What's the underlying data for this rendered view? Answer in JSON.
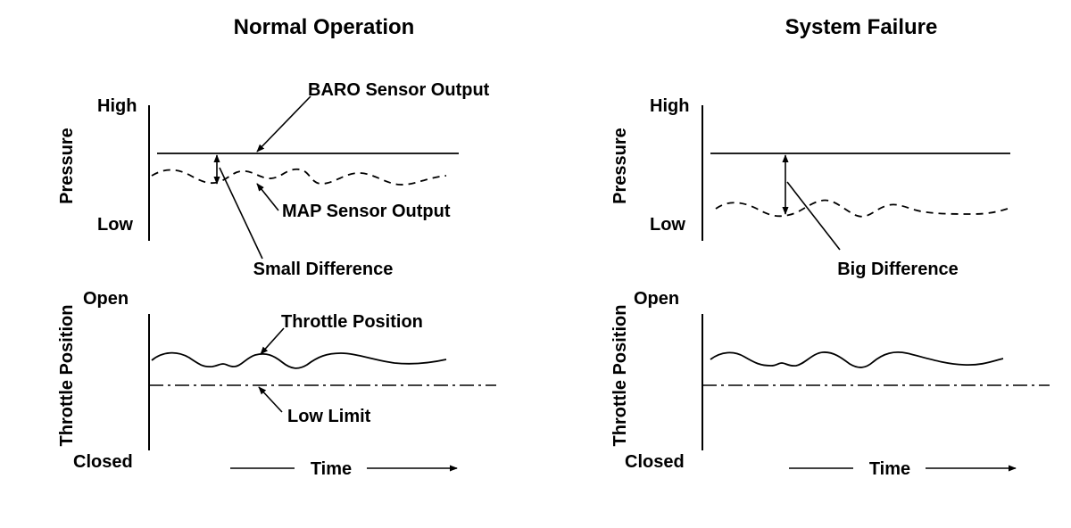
{
  "panels": {
    "normal": {
      "title": "Normal Operation",
      "pressure_axis": "Pressure",
      "pressure_high": "High",
      "pressure_low": "Low",
      "baro_label": "BARO Sensor Output",
      "map_label": "MAP Sensor Output",
      "difference_label": "Small Difference",
      "throttle_axis": "Throttle Position",
      "throttle_open": "Open",
      "throttle_closed": "Closed",
      "throttle_label": "Throttle Position",
      "low_limit_label": "Low Limit",
      "time_label": "Time"
    },
    "failure": {
      "title": "System Failure",
      "pressure_axis": "Pressure",
      "pressure_high": "High",
      "pressure_low": "Low",
      "difference_label": "Big Difference",
      "throttle_axis": "Throttle Position",
      "throttle_open": "Open",
      "throttle_closed": "Closed",
      "time_label": "Time"
    }
  }
}
